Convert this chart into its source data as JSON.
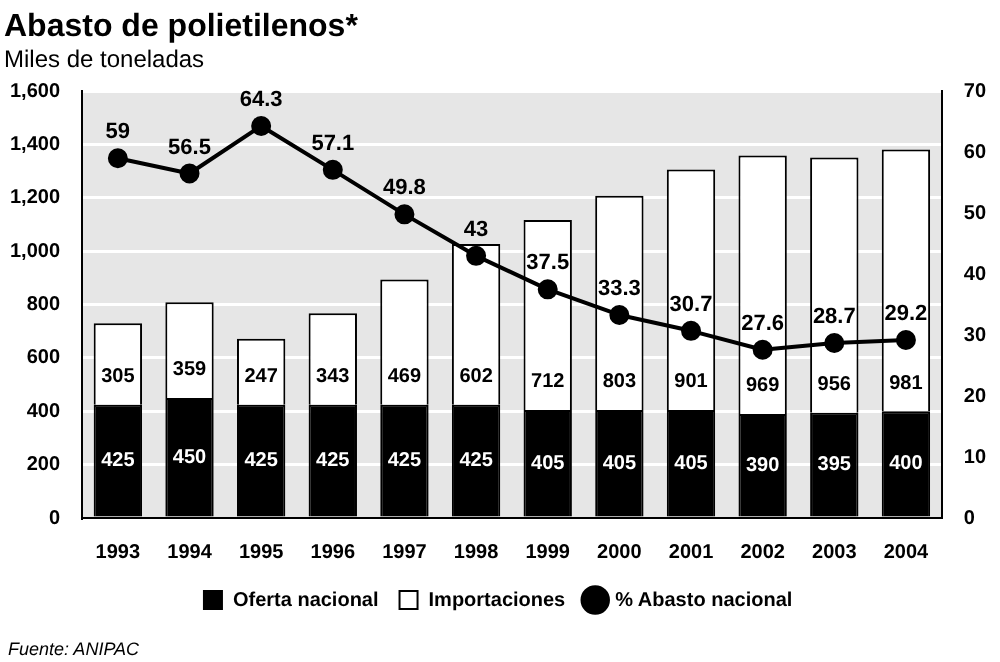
{
  "chart_data": {
    "type": "bar",
    "title": "Abasto de polietilenos*",
    "subtitle": "Miles de toneladas",
    "annotations": [
      "Fuente: ANIPAC"
    ],
    "categories": [
      "1993",
      "1994",
      "1995",
      "1996",
      "1997",
      "1998",
      "1999",
      "2000",
      "2001",
      "2002",
      "2003",
      "2004"
    ],
    "stacked": true,
    "legend": "bottom",
    "grid": "y",
    "data_labels": true,
    "marker": "circle",
    "line_style": "solid",
    "ylim": [
      0,
      1600
    ],
    "yticks": [
      0,
      200,
      400,
      600,
      800,
      {
        "value": 1000,
        "label": "1,000"
      },
      {
        "value": 1200,
        "label": "1,200"
      },
      {
        "value": 1400,
        "label": "1,400"
      },
      {
        "value": 1600,
        "label": "1,600"
      }
    ],
    "y2lim": [
      0,
      70
    ],
    "y2ticks": [
      0,
      10,
      20,
      30,
      40,
      50,
      60,
      70
    ],
    "series": [
      {
        "name": "Oferta nacional",
        "color": "#000000",
        "values": [
          425,
          450,
          425,
          425,
          425,
          425,
          405,
          405,
          405,
          390,
          395,
          400
        ]
      },
      {
        "name": "Importaciones",
        "color": "#ffffff",
        "values": [
          305,
          359,
          247,
          343,
          469,
          602,
          712,
          803,
          901,
          969,
          956,
          981
        ]
      },
      {
        "name": "% Abasto nacional",
        "type": "line",
        "axis": "y2",
        "color": "#000000",
        "values": [
          59,
          56.5,
          64.3,
          57.1,
          49.8,
          43,
          37.5,
          33.3,
          30.7,
          27.6,
          28.7,
          29.2
        ]
      }
    ]
  }
}
